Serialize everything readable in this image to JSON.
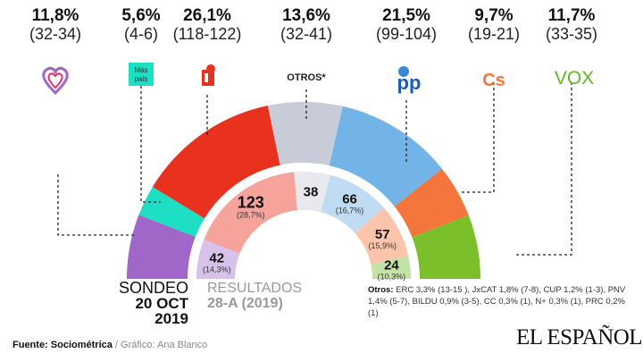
{
  "chart_data": {
    "type": "hemicycle",
    "outer_label": {
      "line1": "SONDEO",
      "line2": "20 OCT 2019"
    },
    "inner_label": {
      "line1": "RESULTADOS",
      "line2": "28-A (2019)"
    },
    "outer_series": [
      {
        "party": "Unidas Podemos",
        "pct": "11,8%",
        "seats": "(32-34)",
        "value": 11.8,
        "color": "#a066c8",
        "logo": "podemos-heart-logo"
      },
      {
        "party": "Más País",
        "pct": "5,6%",
        "seats": "(4-6)",
        "value": 5.6,
        "color": "#1ddfc4",
        "logo_text": "Más país"
      },
      {
        "party": "PSOE",
        "pct": "26,1%",
        "seats": "(118-122)",
        "value": 26.1,
        "color": "#e8321e",
        "logo": "psoe-rose-logo"
      },
      {
        "party": "OTROS*",
        "pct": "13,6%",
        "seats": "(32-41)",
        "value": 13.6,
        "color": "#c8cbd8",
        "logo_text": "OTROS*"
      },
      {
        "party": "PP",
        "pct": "21,5%",
        "seats": "(99-104)",
        "value": 21.5,
        "color": "#72b3e8",
        "logo_text": "pp"
      },
      {
        "party": "Cs",
        "pct": "9,7%",
        "seats": "(19-21)",
        "value": 9.7,
        "color": "#f4763c",
        "logo_text": "Cs"
      },
      {
        "party": "VOX",
        "pct": "11,7%",
        "seats": "(33-35)",
        "value": 11.7,
        "color": "#7bc02a",
        "logo_text": "VOX"
      }
    ],
    "inner_series": [
      {
        "party": "Unidas Podemos",
        "seats": 42,
        "pct": "(14,3%)",
        "color": "#d8c1ea"
      },
      {
        "party": "PSOE",
        "seats": 123,
        "pct": "(28,7%)",
        "color": "#f5a39b"
      },
      {
        "party": "OTROS",
        "seats": 38,
        "pct": "",
        "color": "#e8e9ee"
      },
      {
        "party": "PP",
        "seats": 66,
        "pct": "(16,7%)",
        "color": "#bfdcf3"
      },
      {
        "party": "Cs",
        "seats": 57,
        "pct": "(15,9%)",
        "color": "#fbc4ab"
      },
      {
        "party": "VOX",
        "seats": 24,
        "pct": "(10,3%)",
        "color": "#c3e2a6"
      }
    ]
  },
  "otros_note": {
    "label": "Otros:",
    "text": "ERC 3,3% (13-15 ), JxCAT 1,8% (7-8), CUP 1,2% (1-3), PNV  1,4% (5-7), BILDU 0,9% (3-5),  CC  0,3% (1), N+ 0,3% (1), PRC 0,2% (1)"
  },
  "source": {
    "label": "Fuente: Sociométrica",
    "sep": " / ",
    "credit": "Gráfico: Ana Blanco"
  },
  "brand": "EL ESPAÑOL"
}
